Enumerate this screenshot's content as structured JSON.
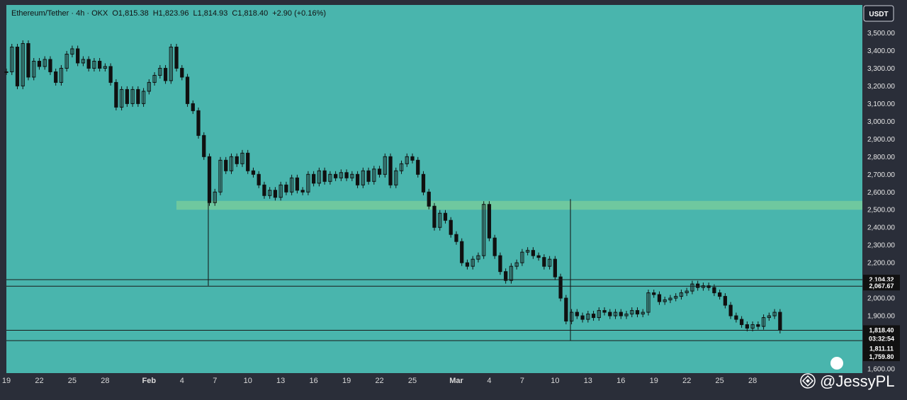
{
  "legend": {
    "symbol": "Ethereum/Tether · 4h · OKX",
    "open": "O1,815.38",
    "high": "H1,823.96",
    "low": "L1,814.93",
    "close": "C1,818.40",
    "change": "+2.90 (+0.16%)"
  },
  "currency_button": "USDT",
  "watermark": "@JessyPL",
  "colors": {
    "background": "#49b5ad",
    "frame": "#2a2e39",
    "zone": "#6fc89f",
    "candle": "#101010",
    "line": "#1a1a1a"
  },
  "chart_data": {
    "type": "candlestick",
    "title": "",
    "ylim": [
      1600,
      3550
    ],
    "y_ticks": [
      3500,
      3400,
      3300,
      3200,
      3100,
      3000,
      2900,
      2800,
      2700,
      2600,
      2500,
      2400,
      2300,
      2200,
      2100,
      2000,
      1900,
      1800,
      1600
    ],
    "y_tick_labels": [
      "3,500.00",
      "3,400.00",
      "3,300.00",
      "3,200.00",
      "3,100.00",
      "3,000.00",
      "2,900.00",
      "2,800.00",
      "2,700.00",
      "2,600.00",
      "2,500.00",
      "2,400.00",
      "2,300.00",
      "2,200.00",
      "2,100.00",
      "2,000.00",
      "1,900.00",
      "1,800.00",
      "1,600.00"
    ],
    "x_labels": [
      "19",
      "22",
      "25",
      "28",
      "Feb",
      "4",
      "7",
      "10",
      "13",
      "16",
      "19",
      "22",
      "25",
      "Mar",
      "4",
      "7",
      "10",
      "13",
      "16",
      "19",
      "22",
      "25",
      "28"
    ],
    "x_label_days": [
      -13,
      -10,
      -7,
      -4,
      0,
      3,
      6,
      9,
      12,
      15,
      18,
      21,
      24,
      28,
      31,
      34,
      37,
      40,
      43,
      46,
      49,
      52,
      55
    ],
    "x_range_days": [
      -13,
      65
    ],
    "price_path": [
      [
        -13,
        3280
      ],
      [
        -12.5,
        3420
      ],
      [
        -12,
        3200
      ],
      [
        -11.5,
        3440
      ],
      [
        -11,
        3250
      ],
      [
        -10.5,
        3340
      ],
      [
        -10,
        3310
      ],
      [
        -9.5,
        3350
      ],
      [
        -9,
        3280
      ],
      [
        -8.5,
        3220
      ],
      [
        -8,
        3300
      ],
      [
        -7.5,
        3380
      ],
      [
        -7,
        3410
      ],
      [
        -6.5,
        3330
      ],
      [
        -6,
        3350
      ],
      [
        -5.5,
        3300
      ],
      [
        -5,
        3340
      ],
      [
        -4.5,
        3300
      ],
      [
        -4,
        3310
      ],
      [
        -3.5,
        3220
      ],
      [
        -3,
        3080
      ],
      [
        -2.5,
        3180
      ],
      [
        -2,
        3100
      ],
      [
        -1.5,
        3180
      ],
      [
        -1,
        3100
      ],
      [
        -0.5,
        3170
      ],
      [
        0,
        3220
      ],
      [
        0.5,
        3260
      ],
      [
        1,
        3300
      ],
      [
        1.5,
        3230
      ],
      [
        2,
        3420
      ],
      [
        2.5,
        3300
      ],
      [
        3,
        3250
      ],
      [
        3.5,
        3100
      ],
      [
        4,
        3060
      ],
      [
        4.5,
        2920
      ],
      [
        5,
        2800
      ],
      [
        5.5,
        2540
      ],
      [
        6,
        2600
      ],
      [
        6.5,
        2780
      ],
      [
        7,
        2720
      ],
      [
        7.5,
        2800
      ],
      [
        8,
        2760
      ],
      [
        8.5,
        2820
      ],
      [
        9,
        2720
      ],
      [
        9.5,
        2700
      ],
      [
        10,
        2640
      ],
      [
        10.5,
        2580
      ],
      [
        11,
        2610
      ],
      [
        11.5,
        2570
      ],
      [
        12,
        2640
      ],
      [
        12.5,
        2600
      ],
      [
        13,
        2680
      ],
      [
        13.5,
        2610
      ],
      [
        14,
        2600
      ],
      [
        14.5,
        2700
      ],
      [
        15,
        2650
      ],
      [
        15.5,
        2720
      ],
      [
        16,
        2660
      ],
      [
        16.5,
        2700
      ],
      [
        17,
        2680
      ],
      [
        17.5,
        2710
      ],
      [
        18,
        2680
      ],
      [
        18.5,
        2700
      ],
      [
        19,
        2640
      ],
      [
        19.5,
        2720
      ],
      [
        20,
        2660
      ],
      [
        20.5,
        2730
      ],
      [
        21,
        2700
      ],
      [
        21.5,
        2800
      ],
      [
        22,
        2640
      ],
      [
        22.5,
        2720
      ],
      [
        23,
        2760
      ],
      [
        23.5,
        2800
      ],
      [
        24,
        2780
      ],
      [
        24.5,
        2700
      ],
      [
        25,
        2600
      ],
      [
        25.5,
        2520
      ],
      [
        26,
        2400
      ],
      [
        26.5,
        2480
      ],
      [
        27,
        2440
      ],
      [
        27.5,
        2360
      ],
      [
        28,
        2320
      ],
      [
        28.5,
        2200
      ],
      [
        29,
        2180
      ],
      [
        29.5,
        2220
      ],
      [
        30,
        2240
      ],
      [
        30.5,
        2530
      ],
      [
        31,
        2340
      ],
      [
        31.5,
        2240
      ],
      [
        32,
        2150
      ],
      [
        32.5,
        2100
      ],
      [
        33,
        2180
      ],
      [
        33.5,
        2200
      ],
      [
        34,
        2260
      ],
      [
        34.5,
        2270
      ],
      [
        35,
        2240
      ],
      [
        35.5,
        2230
      ],
      [
        36,
        2180
      ],
      [
        36.5,
        2220
      ],
      [
        37,
        2120
      ],
      [
        37.5,
        2000
      ],
      [
        38,
        1870
      ],
      [
        38.5,
        1920
      ],
      [
        39,
        1900
      ],
      [
        39.5,
        1880
      ],
      [
        40,
        1910
      ],
      [
        40.5,
        1890
      ],
      [
        41,
        1930
      ],
      [
        41.5,
        1920
      ],
      [
        42,
        1900
      ],
      [
        42.5,
        1920
      ],
      [
        43,
        1900
      ],
      [
        43.5,
        1910
      ],
      [
        44,
        1930
      ],
      [
        44.5,
        1910
      ],
      [
        45,
        1920
      ],
      [
        45.5,
        2030
      ],
      [
        46,
        2020
      ],
      [
        46.5,
        1980
      ],
      [
        47,
        1990
      ],
      [
        47.5,
        2000
      ],
      [
        48,
        2010
      ],
      [
        48.5,
        2030
      ],
      [
        49,
        2040
      ],
      [
        49.5,
        2080
      ],
      [
        50,
        2060
      ],
      [
        50.5,
        2070
      ],
      [
        51,
        2060
      ],
      [
        51.5,
        2030
      ],
      [
        52,
        2010
      ],
      [
        52.5,
        1960
      ],
      [
        53,
        1900
      ],
      [
        53.5,
        1880
      ],
      [
        54,
        1850
      ],
      [
        54.5,
        1830
      ],
      [
        55,
        1850
      ],
      [
        55.5,
        1840
      ],
      [
        56,
        1890
      ],
      [
        56.5,
        1900
      ],
      [
        57,
        1920
      ],
      [
        57.5,
        1818.4
      ]
    ],
    "lows": [
      {
        "x": 5.4,
        "y": 2070
      },
      {
        "x": 38.4,
        "y": 1760
      }
    ],
    "zone": {
      "from": 2500,
      "to": 2550
    },
    "levels": [
      2104.32,
      2067.67,
      1818.4,
      1759.8
    ],
    "price_badges": [
      {
        "value": 2104.32,
        "label": "2,104.32"
      },
      {
        "value": 2067.67,
        "label": "2,067.67"
      },
      {
        "value": 1818.4,
        "label": "1,818.40",
        "sub": "03:32:54"
      },
      {
        "value": 1811.11,
        "label": "1,811.11"
      },
      {
        "value": 1759.8,
        "label": "1,759.80"
      }
    ]
  }
}
